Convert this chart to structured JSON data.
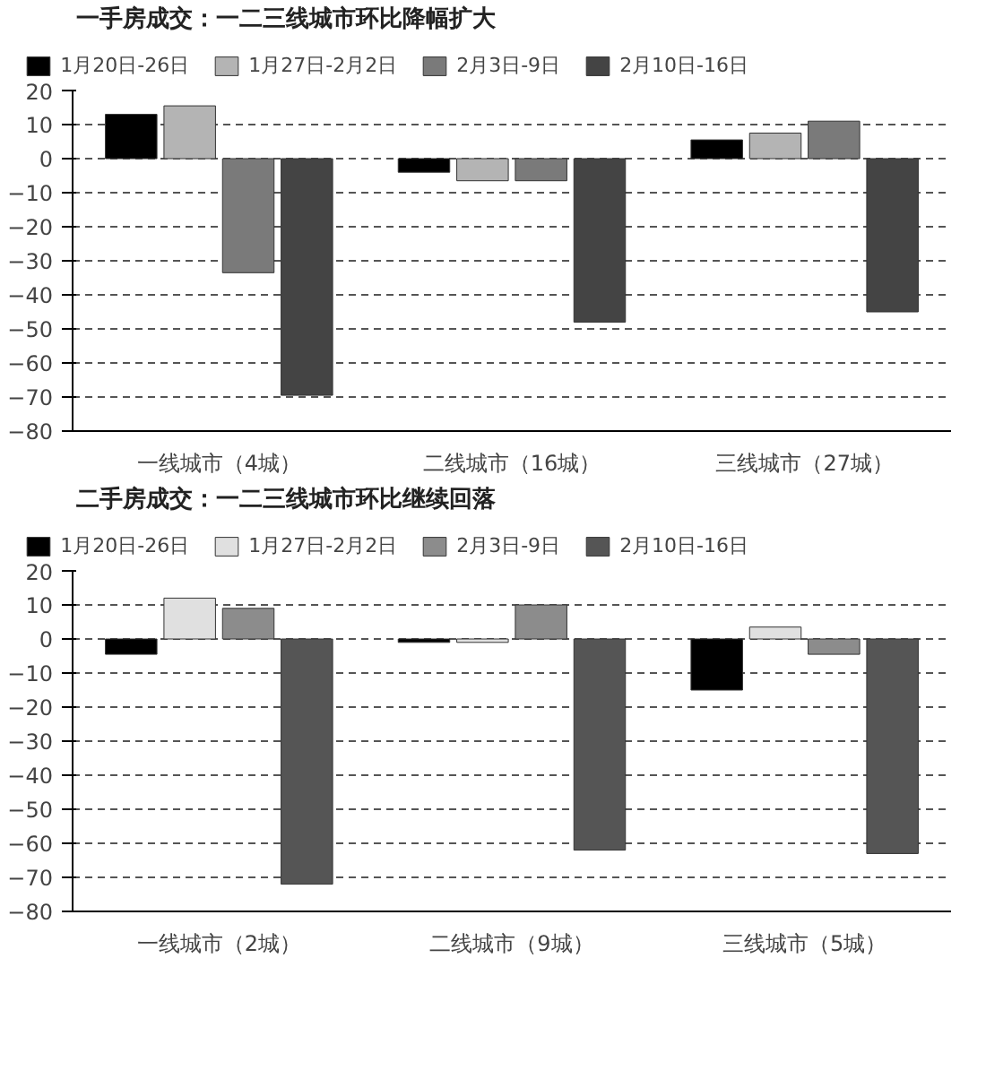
{
  "chart_data": [
    {
      "type": "bar",
      "title": "一手房成交：一二三线城市环比降幅扩大",
      "categories": [
        "一线城市（4城）",
        "二线城市（16城）",
        "三线城市（27城）"
      ],
      "series": [
        {
          "name": "1月20日-26日",
          "color": "#000000",
          "values": [
            13,
            -4,
            5.5
          ]
        },
        {
          "name": "1月27日-2月2日",
          "color": "#b4b4b4",
          "values": [
            15.5,
            -6.5,
            7.5
          ]
        },
        {
          "name": "2月3日-9日",
          "color": "#7a7a7a",
          "values": [
            -33.5,
            -6.5,
            11
          ]
        },
        {
          "name": "2月10日-16日",
          "color": "#444444",
          "values": [
            -69.5,
            -48,
            -45
          ]
        }
      ],
      "ylim": [
        -80,
        20
      ],
      "yticks": [
        -80,
        -70,
        -60,
        -50,
        -40,
        -30,
        -20,
        -10,
        0,
        10,
        20
      ],
      "grid": "y",
      "legend": "top"
    },
    {
      "type": "bar",
      "title": "二手房成交：一二三线城市环比继续回落",
      "categories": [
        "一线城市（2城）",
        "二线城市（9城）",
        "三线城市（5城）"
      ],
      "series": [
        {
          "name": "1月20日-26日",
          "color": "#000000",
          "values": [
            -4.5,
            -1,
            -15
          ]
        },
        {
          "name": "1月27日-2月2日",
          "color": "#e0e0e0",
          "values": [
            12,
            -1,
            3.5
          ]
        },
        {
          "name": "2月3日-9日",
          "color": "#8c8c8c",
          "values": [
            9,
            10,
            -4.5
          ]
        },
        {
          "name": "2月10日-16日",
          "color": "#555555",
          "values": [
            -72,
            -62,
            -63
          ]
        }
      ],
      "ylim": [
        -80,
        20
      ],
      "yticks": [
        -80,
        -70,
        -60,
        -50,
        -40,
        -30,
        -20,
        -10,
        0,
        10,
        20
      ],
      "grid": "y",
      "legend": "top"
    }
  ]
}
